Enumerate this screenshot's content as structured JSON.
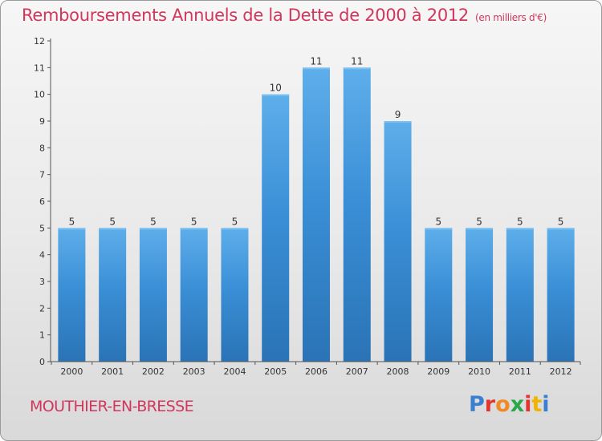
{
  "chart_data": {
    "type": "bar",
    "title": "Remboursements Annuels de la Dette de 2000 à 2012",
    "unit_note": "(en milliers d'€)",
    "categories": [
      "2000",
      "2001",
      "2002",
      "2003",
      "2004",
      "2005",
      "2006",
      "2007",
      "2008",
      "2009",
      "2010",
      "2011",
      "2012"
    ],
    "values": [
      5,
      5,
      5,
      5,
      5,
      10,
      11,
      11,
      9,
      5,
      5,
      5,
      5
    ],
    "ylim": [
      0,
      12
    ],
    "yticks": [
      0,
      1,
      2,
      3,
      4,
      5,
      6,
      7,
      8,
      9,
      10,
      11,
      12
    ],
    "xlabel": "",
    "ylabel": "",
    "grid": false,
    "bar_color": "#3a8fd6",
    "bar_color_light": "#5eaeea",
    "bar_color_dark": "#2a73b6"
  },
  "footer": {
    "city": "MOUTHIER-EN-BRESSE",
    "logo": "Proxiti"
  }
}
